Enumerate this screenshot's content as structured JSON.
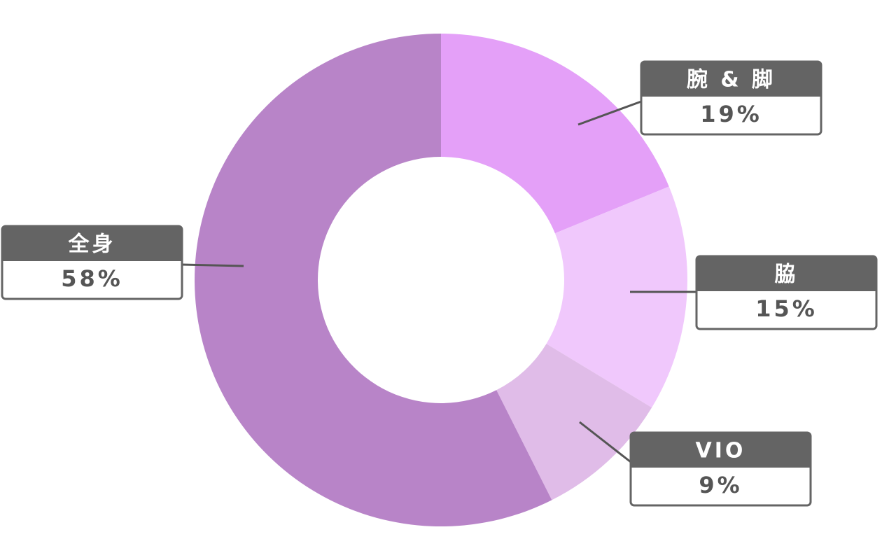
{
  "chart_data": {
    "type": "pie",
    "categories": [
      "腕 & 脚",
      "脇",
      "VIO",
      "全身"
    ],
    "values": [
      19,
      15,
      9,
      58
    ],
    "value_labels": [
      "19%",
      "15%",
      "9%",
      "58%"
    ],
    "colors": [
      "#e4a0f8",
      "#f0c8fc",
      "#e0bce8",
      "#b884c8"
    ]
  }
}
